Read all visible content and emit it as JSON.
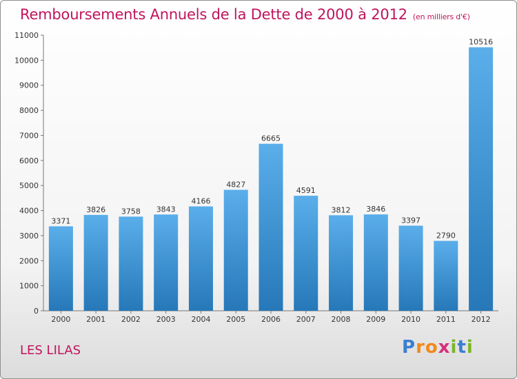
{
  "header": {
    "title": "Remboursements Annuels de la Dette de 2000 à 2012",
    "subtitle": "(en milliers d'€)"
  },
  "footer": {
    "commune": "LES LILAS",
    "logo_text": "Proxiti"
  },
  "colors": {
    "title": "#c0145c",
    "bar_top": "#5aaeea",
    "bar_bottom": "#2678b8"
  },
  "chart_data": {
    "type": "bar",
    "title": "Remboursements Annuels de la Dette de 2000 à 2012",
    "subtitle": "(en milliers d'€)",
    "xlabel": "",
    "ylabel": "",
    "categories": [
      "2000",
      "2001",
      "2002",
      "2003",
      "2004",
      "2005",
      "2006",
      "2007",
      "2008",
      "2009",
      "2010",
      "2011",
      "2012"
    ],
    "values": [
      3371,
      3826,
      3758,
      3843,
      4166,
      4827,
      6665,
      4591,
      3812,
      3846,
      3397,
      2790,
      10516
    ],
    "ylim": [
      0,
      11000
    ],
    "yticks": [
      0,
      1000,
      2000,
      3000,
      4000,
      5000,
      6000,
      7000,
      8000,
      9000,
      10000,
      11000
    ],
    "grid": false,
    "legend": "none"
  }
}
